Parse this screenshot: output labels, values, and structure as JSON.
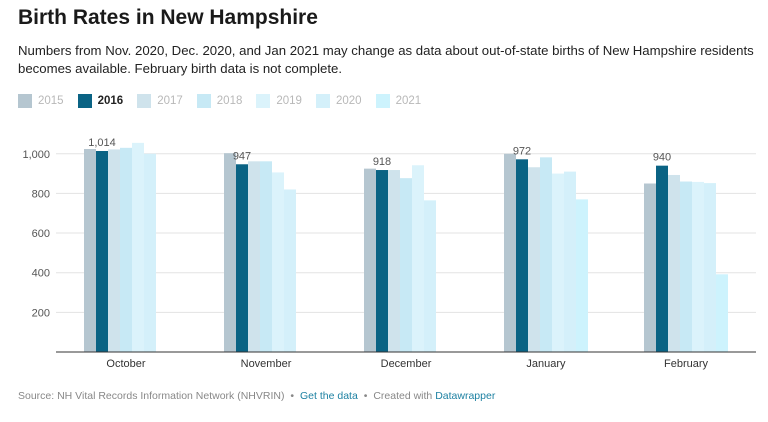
{
  "header": {
    "title": "Birth Rates in New Hampshire",
    "subtitle": "Numbers from Nov. 2020, Dec. 2020, and Jan 2021 may change as data about out-of-state births of New Hampshire residents becomes available. February birth data is not complete."
  },
  "footer": {
    "source": "Source: NH Vital Records Information Network (NHVRIN)",
    "separator": "•",
    "get_data": "Get the data",
    "created_with": "Created with",
    "datawrapper": "Datawrapper"
  },
  "colors": {
    "highlight": "#0a6384",
    "other_series": [
      "#b5c6d0",
      "#d9e9ef",
      "#cfe3ec",
      "#c7e9f5",
      "#dbf3fb",
      "#d4f0fa",
      "#cdf3fd"
    ]
  },
  "chart_data": {
    "type": "bar",
    "categories": [
      "October",
      "November",
      "December",
      "January",
      "February"
    ],
    "series": [
      {
        "name": "2015",
        "values": [
          1024,
          1003,
          925,
          1000,
          850
        ]
      },
      {
        "name": "2016",
        "values": [
          1014,
          947,
          918,
          972,
          940
        ]
      },
      {
        "name": "2017",
        "values": [
          1022,
          962,
          918,
          932,
          893
        ]
      },
      {
        "name": "2018",
        "values": [
          1030,
          962,
          877,
          982,
          860
        ]
      },
      {
        "name": "2019",
        "values": [
          1055,
          906,
          942,
          900,
          858
        ]
      },
      {
        "name": "2020",
        "values": [
          1000,
          820,
          765,
          910,
          852
        ]
      },
      {
        "name": "2021",
        "values": [
          null,
          null,
          null,
          770,
          392
        ]
      }
    ],
    "highlighted_series": "2016",
    "data_labels": [
      "1,014",
      "947",
      "918",
      "972",
      "940"
    ],
    "y_ticks": [
      200,
      400,
      600,
      800,
      1000
    ],
    "y_tick_labels": [
      "200",
      "400",
      "600",
      "800",
      "1,000"
    ],
    "ylim": [
      0,
      1130
    ],
    "grid": true,
    "legend": "top-left"
  }
}
